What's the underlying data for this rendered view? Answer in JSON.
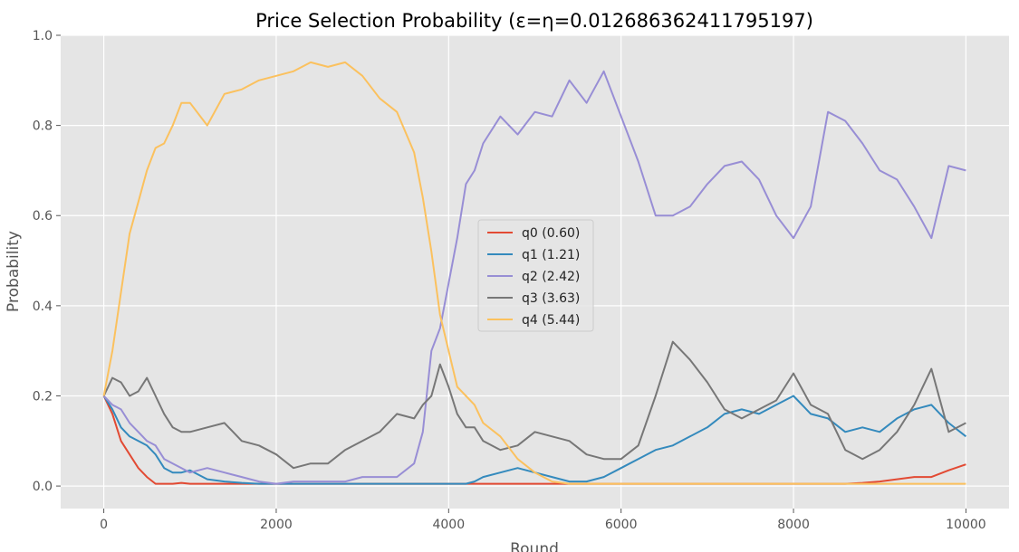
{
  "chart_data": {
    "type": "line",
    "title": "Price Selection Probability (ε=η=0.012686362411795197)",
    "xlabel": "Round",
    "ylabel": "Probability",
    "xlim": [
      -500,
      10500
    ],
    "ylim": [
      -0.05,
      1.0
    ],
    "xticks": [
      0,
      2000,
      4000,
      6000,
      8000,
      10000
    ],
    "yticks": [
      0.0,
      0.2,
      0.4,
      0.6,
      0.8,
      1.0
    ],
    "ytick_labels": [
      "0.0",
      "0.2",
      "0.4",
      "0.6",
      "0.8",
      "1.0"
    ],
    "grid": true,
    "legend_position": "center",
    "x": [
      0,
      100,
      200,
      300,
      400,
      500,
      600,
      700,
      800,
      900,
      1000,
      1200,
      1400,
      1600,
      1800,
      2000,
      2200,
      2400,
      2600,
      2800,
      3000,
      3200,
      3400,
      3600,
      3700,
      3800,
      3900,
      4000,
      4100,
      4200,
      4300,
      4400,
      4600,
      4800,
      5000,
      5200,
      5400,
      5600,
      5800,
      6000,
      6200,
      6400,
      6600,
      6800,
      7000,
      7200,
      7400,
      7600,
      7800,
      8000,
      8200,
      8400,
      8600,
      8800,
      9000,
      9200,
      9400,
      9600,
      9800,
      10000
    ],
    "series": [
      {
        "name": "q0 (0.60)",
        "color": "#e24a33",
        "values": [
          0.2,
          0.16,
          0.1,
          0.07,
          0.04,
          0.02,
          0.005,
          0.005,
          0.005,
          0.007,
          0.005,
          0.005,
          0.005,
          0.005,
          0.005,
          0.005,
          0.005,
          0.005,
          0.005,
          0.005,
          0.005,
          0.005,
          0.005,
          0.005,
          0.005,
          0.005,
          0.005,
          0.005,
          0.005,
          0.005,
          0.005,
          0.005,
          0.005,
          0.005,
          0.005,
          0.005,
          0.005,
          0.005,
          0.005,
          0.005,
          0.005,
          0.005,
          0.005,
          0.005,
          0.005,
          0.005,
          0.005,
          0.005,
          0.005,
          0.005,
          0.005,
          0.005,
          0.005,
          0.007,
          0.01,
          0.015,
          0.02,
          0.02,
          0.035,
          0.048
        ]
      },
      {
        "name": "q1 (1.21)",
        "color": "#348abd",
        "values": [
          0.2,
          0.17,
          0.13,
          0.11,
          0.1,
          0.09,
          0.07,
          0.04,
          0.03,
          0.03,
          0.035,
          0.015,
          0.01,
          0.007,
          0.005,
          0.005,
          0.005,
          0.005,
          0.005,
          0.005,
          0.005,
          0.005,
          0.005,
          0.005,
          0.005,
          0.005,
          0.005,
          0.005,
          0.005,
          0.005,
          0.01,
          0.02,
          0.03,
          0.04,
          0.03,
          0.02,
          0.01,
          0.01,
          0.02,
          0.04,
          0.06,
          0.08,
          0.09,
          0.11,
          0.13,
          0.16,
          0.17,
          0.16,
          0.18,
          0.2,
          0.16,
          0.15,
          0.12,
          0.13,
          0.12,
          0.15,
          0.17,
          0.18,
          0.14,
          0.11
        ]
      },
      {
        "name": "q2 (2.42)",
        "color": "#988ed5",
        "values": [
          0.2,
          0.18,
          0.17,
          0.14,
          0.12,
          0.1,
          0.09,
          0.06,
          0.05,
          0.04,
          0.03,
          0.04,
          0.03,
          0.02,
          0.01,
          0.005,
          0.01,
          0.01,
          0.01,
          0.01,
          0.02,
          0.02,
          0.02,
          0.05,
          0.12,
          0.3,
          0.35,
          0.45,
          0.55,
          0.67,
          0.7,
          0.76,
          0.82,
          0.78,
          0.83,
          0.82,
          0.9,
          0.85,
          0.92,
          0.82,
          0.72,
          0.6,
          0.6,
          0.62,
          0.67,
          0.71,
          0.72,
          0.68,
          0.6,
          0.55,
          0.62,
          0.83,
          0.81,
          0.76,
          0.7,
          0.68,
          0.62,
          0.55,
          0.71,
          0.7
        ]
      },
      {
        "name": "q3 (3.63)",
        "color": "#777777",
        "values": [
          0.2,
          0.24,
          0.23,
          0.2,
          0.21,
          0.24,
          0.2,
          0.16,
          0.13,
          0.12,
          0.12,
          0.13,
          0.14,
          0.1,
          0.09,
          0.07,
          0.04,
          0.05,
          0.05,
          0.08,
          0.1,
          0.12,
          0.16,
          0.15,
          0.18,
          0.2,
          0.27,
          0.22,
          0.16,
          0.13,
          0.13,
          0.1,
          0.08,
          0.09,
          0.12,
          0.11,
          0.1,
          0.07,
          0.06,
          0.06,
          0.09,
          0.2,
          0.32,
          0.28,
          0.23,
          0.17,
          0.15,
          0.17,
          0.19,
          0.25,
          0.18,
          0.16,
          0.08,
          0.06,
          0.08,
          0.12,
          0.18,
          0.26,
          0.12,
          0.14
        ]
      },
      {
        "name": "q4 (5.44)",
        "color": "#fbc15e",
        "values": [
          0.2,
          0.3,
          0.43,
          0.56,
          0.63,
          0.7,
          0.75,
          0.76,
          0.8,
          0.85,
          0.85,
          0.8,
          0.87,
          0.88,
          0.9,
          0.91,
          0.92,
          0.94,
          0.93,
          0.94,
          0.91,
          0.86,
          0.83,
          0.74,
          0.64,
          0.52,
          0.38,
          0.3,
          0.22,
          0.2,
          0.18,
          0.14,
          0.11,
          0.06,
          0.03,
          0.01,
          0.005,
          0.005,
          0.005,
          0.005,
          0.005,
          0.005,
          0.005,
          0.005,
          0.005,
          0.005,
          0.005,
          0.005,
          0.005,
          0.005,
          0.005,
          0.005,
          0.005,
          0.005,
          0.005,
          0.005,
          0.005,
          0.005,
          0.005,
          0.005
        ]
      }
    ]
  }
}
